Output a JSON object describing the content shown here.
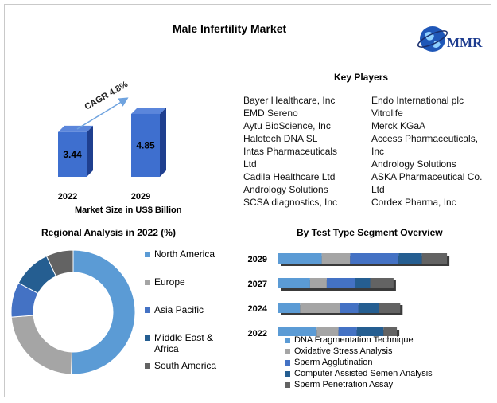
{
  "title": "Male Infertility Market",
  "logo": {
    "text": "MMR",
    "icon": "globe-icon"
  },
  "colors": {
    "bar_front": "#3e6fcf",
    "bar_side": "#1f3f8f",
    "bar_top": "#5b86db",
    "arrow": "#6fa3df"
  },
  "market_size": {
    "cagr_label": "CAGR 4.8%",
    "caption": "Market Size in US$ Billion"
  },
  "key_players": {
    "title": "Key Players",
    "left": [
      "Bayer Healthcare, Inc",
      "EMD Sereno",
      "Aytu BioScience, Inc",
      "Halotech DNA SL",
      "Intas Pharmaceuticals",
      "Ltd",
      "Cadila Healthcare Ltd",
      "Andrology Solutions",
      "SCSA diagnostics, Inc"
    ],
    "right": [
      "Endo International plc",
      "Vitrolife",
      "Merck KGaA",
      "Access Pharmaceuticals,",
      "Inc",
      "Andrology Solutions",
      "ASKA Pharmaceutical Co.",
      "Ltd",
      "Cordex Pharma, Inc"
    ]
  },
  "chart_data": [
    {
      "type": "bar",
      "categories": [
        "2022",
        "2029"
      ],
      "values": [
        3.44,
        4.85
      ],
      "labels": [
        "3.44",
        "4.85"
      ],
      "xlabel": "Market Size in US$ Billion",
      "annotation": "CAGR 4.8%"
    },
    {
      "type": "pie",
      "title": "Regional Analysis in 2022 (%)",
      "donut": true,
      "categories": [
        "North America",
        "Europe",
        "Asia Pacific",
        "Middle East & Africa",
        "South America"
      ],
      "legend_lines": [
        [
          "North America"
        ],
        [
          "Europe"
        ],
        [
          "Asia Pacific"
        ],
        [
          "Middle East &",
          "Africa"
        ],
        [
          "South America"
        ]
      ],
      "values": [
        50,
        23,
        9,
        10,
        7
      ],
      "colors": [
        "#5b9bd5",
        "#a5a5a5",
        "#4472c4",
        "#255e91",
        "#636363"
      ],
      "legend_position": "right"
    },
    {
      "type": "bar",
      "orientation": "horizontal",
      "stacked": true,
      "title": "By Test Type Segment Overview",
      "categories": [
        "2029",
        "2027",
        "2024",
        "2022"
      ],
      "series": [
        {
          "name": "DNA Fragmentation Technique",
          "color": "#5b9bd5",
          "values": [
            26,
            19,
            13,
            23
          ]
        },
        {
          "name": "Oxidative Stress Analysis",
          "color": "#a5a5a5",
          "values": [
            17,
            10,
            24,
            13
          ]
        },
        {
          "name": "Sperm Agglutination",
          "color": "#4472c4",
          "values": [
            29,
            17,
            11,
            11
          ]
        },
        {
          "name": "Computer Assisted Semen Analysis",
          "color": "#255e91",
          "values": [
            14,
            9,
            12,
            16
          ]
        },
        {
          "name": "Sperm Penetration Assay",
          "color": "#636363",
          "values": [
            15,
            14,
            13,
            8
          ]
        }
      ],
      "legend_position": "bottom"
    }
  ]
}
